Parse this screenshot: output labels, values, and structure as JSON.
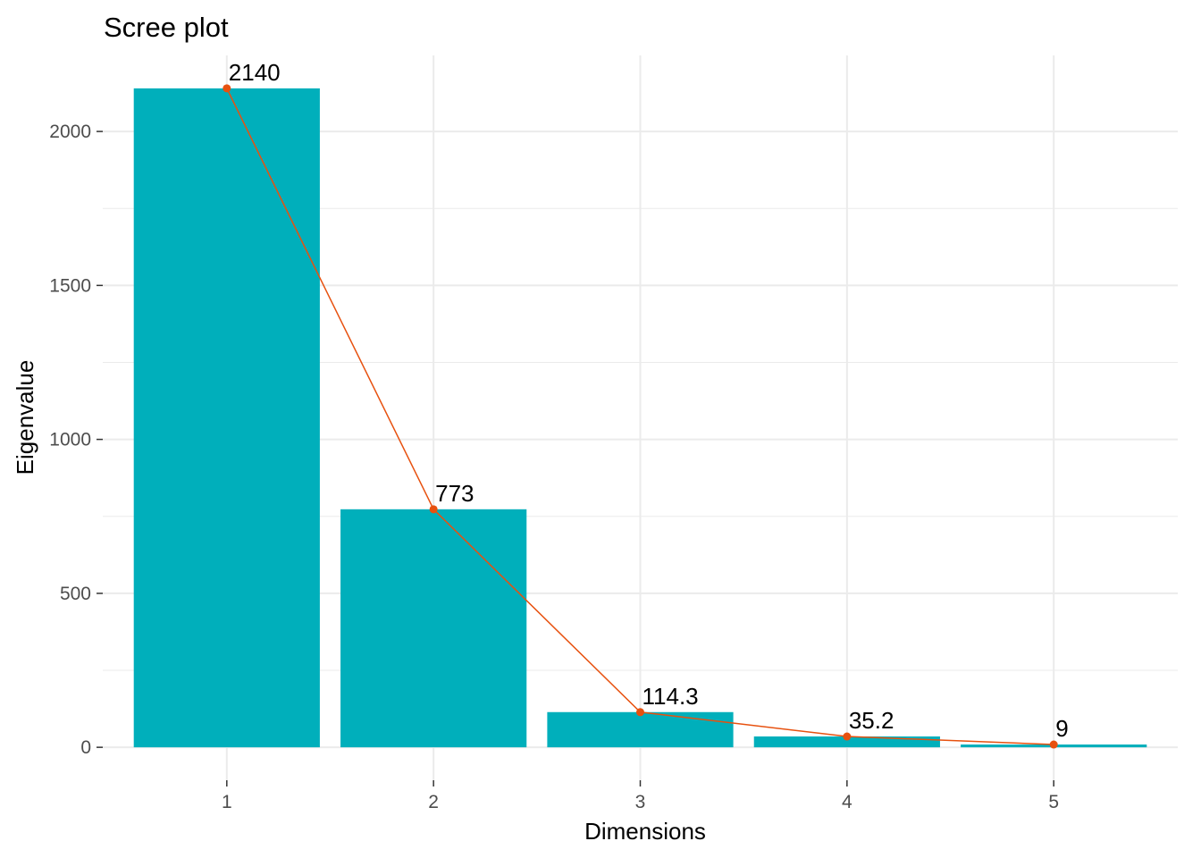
{
  "chart_data": {
    "type": "bar",
    "title": "Scree plot",
    "xlabel": "Dimensions",
    "ylabel": "Eigenvalue",
    "categories": [
      "1",
      "2",
      "3",
      "4",
      "5"
    ],
    "values": [
      2140,
      773,
      114.3,
      35.2,
      9
    ],
    "labels": [
      "2140",
      "773",
      "114.3",
      "35.2",
      "9"
    ],
    "ylim": [
      -107,
      2247
    ],
    "yticks": [
      0,
      500,
      1000,
      1500,
      2000
    ],
    "ytick_labels": [
      "0",
      "500",
      "1000",
      "1500",
      "2000"
    ],
    "grid": true,
    "legend": "none",
    "overlay": "line with points",
    "colors": {
      "bar": "#00AFBB",
      "line": "#E7510F",
      "grid": "#ebebeb",
      "tick": "#333333"
    }
  }
}
